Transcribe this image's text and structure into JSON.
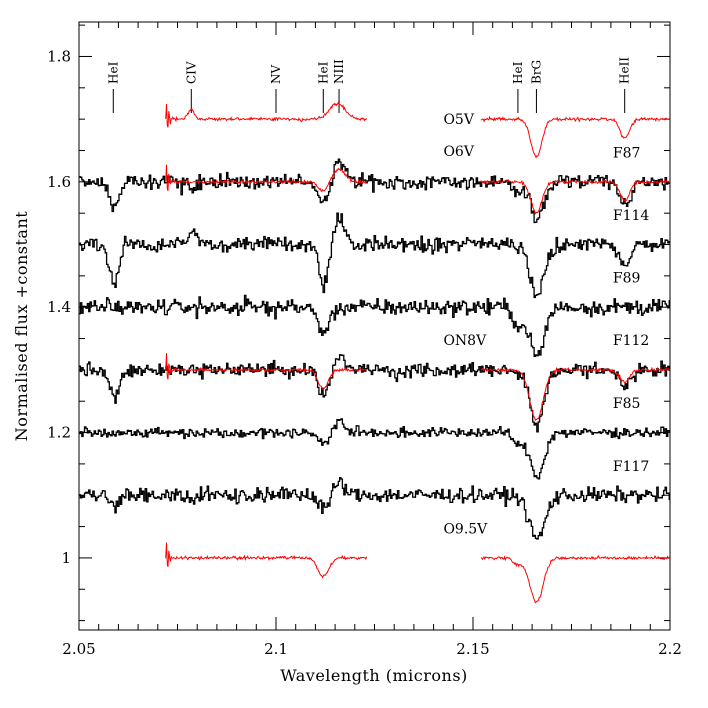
{
  "chart_data": {
    "type": "line",
    "xlabel": "Wavelength (microns)",
    "ylabel": "Normalised flux +constant",
    "xlim": [
      2.05,
      2.2
    ],
    "ylim": [
      0.885,
      1.855
    ],
    "xticks": [
      "2.05",
      "2.1",
      "2.15",
      "2.2"
    ],
    "yticks": [
      "1",
      "1.2",
      "1.4",
      "1.6",
      "1.8"
    ],
    "colors": {
      "observed": "#000000",
      "template": "#ff0000",
      "axes": "#000000"
    },
    "line_markers": [
      {
        "label": "HeI",
        "wavelength": 2.0587
      },
      {
        "label": "CIV",
        "wavelength": 2.0785
      },
      {
        "label": "NV",
        "wavelength": 2.1
      },
      {
        "label": "HeI",
        "wavelength": 2.112
      },
      {
        "label": "NIII",
        "wavelength": 2.116
      },
      {
        "label": "HeI",
        "wavelength": 2.1614
      },
      {
        "label": "BrG",
        "wavelength": 2.1661
      },
      {
        "label": "HeII",
        "wavelength": 2.1885
      }
    ],
    "series": [
      {
        "name": "F87",
        "kind": "observed",
        "offset": 1.6,
        "label_x": 2.1855,
        "label_y": 1.647,
        "noise": 0.012,
        "depth_scale": 1.0,
        "absorptions": [
          [
            2.0587,
            0.04,
            0.0012
          ],
          [
            2.0785,
            0.01,
            0.0015
          ],
          [
            2.112,
            0.03,
            0.0015
          ],
          [
            2.1614,
            0.02,
            0.0012
          ],
          [
            2.1661,
            0.06,
            0.0016
          ],
          [
            2.1885,
            0.04,
            0.0014
          ]
        ],
        "emissions": [
          [
            2.116,
            0.03,
            0.0015
          ]
        ]
      },
      {
        "name": "F114",
        "kind": "observed",
        "offset": 1.5,
        "label_x": 2.1855,
        "label_y": 1.547,
        "noise": 0.012,
        "depth_scale": 1.0,
        "absorptions": [
          [
            2.0587,
            0.06,
            0.0012
          ],
          [
            2.112,
            0.06,
            0.0012
          ],
          [
            2.1661,
            0.08,
            0.0018
          ],
          [
            2.1885,
            0.03,
            0.0014
          ]
        ],
        "emissions": [
          [
            2.116,
            0.04,
            0.0013
          ],
          [
            2.079,
            0.02,
            0.0012
          ]
        ]
      },
      {
        "name": "F89",
        "kind": "observed",
        "offset": 1.4,
        "label_x": 2.1855,
        "label_y": 1.447,
        "noise": 0.013,
        "depth_scale": 1.0,
        "absorptions": [
          [
            2.112,
            0.04,
            0.0015
          ],
          [
            2.1661,
            0.08,
            0.0018
          ],
          [
            2.1614,
            0.03,
            0.0012
          ]
        ],
        "emissions": []
      },
      {
        "name": "F112",
        "kind": "observed",
        "offset": 1.3,
        "label_x": 2.1855,
        "label_y": 1.348,
        "noise": 0.012,
        "depth_scale": 1.0,
        "absorptions": [
          [
            2.0587,
            0.04,
            0.0013
          ],
          [
            2.112,
            0.04,
            0.0015
          ],
          [
            2.1661,
            0.09,
            0.0018
          ],
          [
            2.1885,
            0.03,
            0.0015
          ]
        ],
        "emissions": [
          [
            2.116,
            0.02,
            0.0014
          ]
        ]
      },
      {
        "name": "F85",
        "kind": "observed",
        "offset": 1.2,
        "label_x": 2.1855,
        "label_y": 1.247,
        "noise": 0.008,
        "depth_scale": 1.0,
        "absorptions": [
          [
            2.112,
            0.02,
            0.0012
          ],
          [
            2.1661,
            0.07,
            0.0018
          ],
          [
            2.1614,
            0.02,
            0.0012
          ]
        ],
        "emissions": [
          [
            2.116,
            0.02,
            0.0012
          ]
        ]
      },
      {
        "name": "F117",
        "kind": "observed",
        "offset": 1.1,
        "label_x": 2.1855,
        "label_y": 1.147,
        "noise": 0.012,
        "depth_scale": 1.0,
        "absorptions": [
          [
            2.1661,
            0.07,
            0.002
          ],
          [
            2.059,
            0.02,
            0.0012
          ],
          [
            2.112,
            0.02,
            0.0012
          ]
        ],
        "emissions": [
          [
            2.116,
            0.02,
            0.0013
          ]
        ]
      },
      {
        "name": "O5V",
        "kind": "template",
        "offset": 1.7,
        "label_x": 2.1425,
        "label_y": 1.7,
        "segments": [
          [
            2.072,
            2.123
          ],
          [
            2.152,
            2.2
          ]
        ],
        "absorptions": [
          [
            2.1661,
            0.06,
            0.0014
          ],
          [
            2.1885,
            0.03,
            0.0012
          ]
        ],
        "emissions": [
          [
            2.0785,
            0.015,
            0.0008
          ],
          [
            2.1155,
            0.025,
            0.002
          ]
        ]
      },
      {
        "name": "O6V",
        "kind": "template",
        "offset": 1.6,
        "label_x": 2.1425,
        "label_y": 1.649,
        "segments": [
          [
            2.072,
            2.123
          ],
          [
            2.152,
            2.2
          ]
        ],
        "absorptions": [
          [
            2.112,
            0.015,
            0.0012
          ],
          [
            2.1661,
            0.05,
            0.0014
          ],
          [
            2.1885,
            0.03,
            0.0012
          ]
        ],
        "emissions": [
          [
            2.116,
            0.02,
            0.0016
          ]
        ]
      },
      {
        "name": "ON8V",
        "kind": "template",
        "offset": 1.3,
        "label_x": 2.1425,
        "label_y": 1.348,
        "segments": [
          [
            2.072,
            2.123
          ],
          [
            2.152,
            2.2
          ]
        ],
        "absorptions": [
          [
            2.112,
            0.03,
            0.0013
          ],
          [
            2.1661,
            0.08,
            0.0017
          ],
          [
            2.1885,
            0.02,
            0.0012
          ]
        ],
        "emissions": []
      },
      {
        "name": "O9.5V",
        "kind": "template",
        "offset": 1.0,
        "label_x": 2.1425,
        "label_y": 1.047,
        "segments": [
          [
            2.072,
            2.123
          ],
          [
            2.152,
            2.2
          ]
        ],
        "absorptions": [
          [
            2.112,
            0.03,
            0.0014
          ],
          [
            2.1661,
            0.07,
            0.0017
          ],
          [
            2.1614,
            0.01,
            0.001
          ]
        ],
        "emissions": []
      }
    ]
  }
}
